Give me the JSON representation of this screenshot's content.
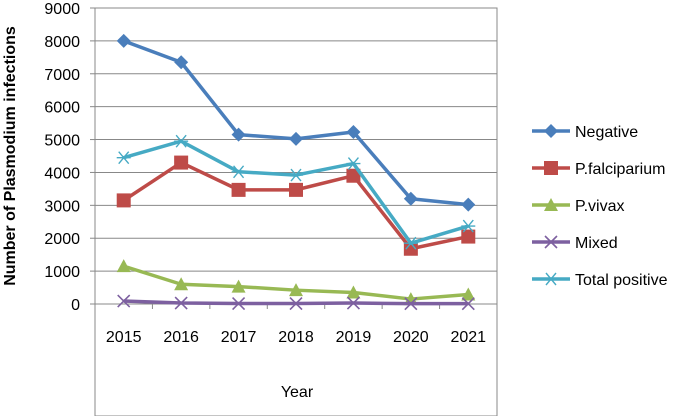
{
  "chart_data": {
    "type": "line",
    "title": "",
    "xlabel": "Year",
    "ylabel": "Number of Plasmodium infections",
    "categories": [
      "2015",
      "2016",
      "2017",
      "2018",
      "2019",
      "2020",
      "2021"
    ],
    "ylim": [
      0,
      9000
    ],
    "yticks": [
      0,
      1000,
      2000,
      3000,
      4000,
      5000,
      6000,
      7000,
      8000,
      9000
    ],
    "grid": true,
    "legend_position": "right",
    "series": [
      {
        "name": "Negative",
        "values": [
          8000,
          7350,
          5150,
          5020,
          5230,
          3200,
          3020
        ],
        "color": "#4a7ebb",
        "marker": "diamond"
      },
      {
        "name": "P.falciparium",
        "values": [
          3150,
          4300,
          3470,
          3470,
          3900,
          1680,
          2050
        ],
        "color": "#be4b48",
        "marker": "square"
      },
      {
        "name": "P.vivax",
        "values": [
          1150,
          600,
          530,
          420,
          350,
          150,
          290
        ],
        "color": "#98b954",
        "marker": "triangle"
      },
      {
        "name": "Mixed",
        "values": [
          90,
          30,
          15,
          15,
          30,
          10,
          10
        ],
        "color": "#7d60a0",
        "marker": "x"
      },
      {
        "name": "Total positive",
        "values": [
          4450,
          4950,
          4020,
          3920,
          4270,
          1850,
          2370
        ],
        "color": "#46aac4",
        "marker": "star"
      }
    ]
  }
}
